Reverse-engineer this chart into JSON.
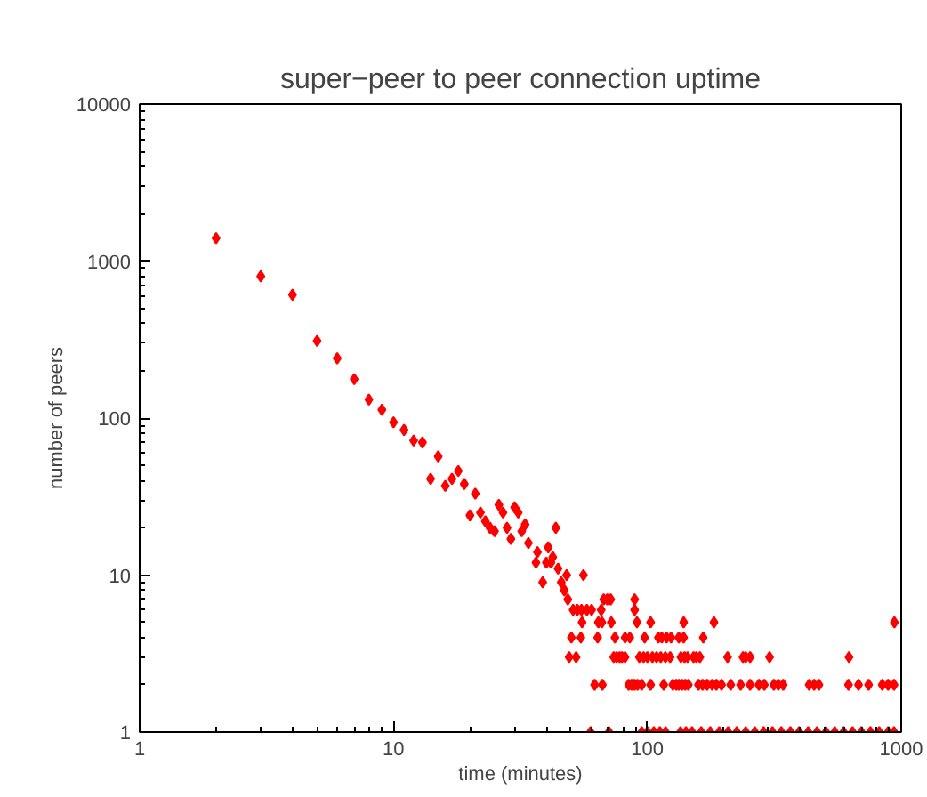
{
  "chart_data": {
    "type": "scatter",
    "title": "super−peer to peer connection uptime",
    "xlabel": "time (minutes)",
    "ylabel": "number of peers",
    "log": "xy",
    "grid": false,
    "marker": "diamond",
    "xlim": [
      1,
      1000
    ],
    "ylim": [
      1,
      10000
    ],
    "xticks": [
      1,
      10,
      100,
      1000
    ],
    "yticks": [
      1,
      10,
      100,
      1000,
      10000
    ],
    "series": [
      {
        "color": "#ff0000",
        "x": [
          2,
          3,
          4,
          5,
          6,
          7,
          8,
          9,
          10,
          11,
          12,
          13,
          14,
          15,
          16,
          17,
          18,
          19,
          20,
          21,
          22,
          23,
          24,
          25,
          26,
          27,
          28,
          29,
          30,
          31,
          32,
          33,
          34,
          36.4,
          36.9,
          38.7,
          40,
          40.7,
          41.7,
          42.4,
          43.6,
          44.5,
          45.8,
          47.1,
          48.1,
          56,
          48.6,
          67.3,
          69.5,
          71.7,
          89.1,
          51,
          53,
          55,
          57.8,
          60.3,
          65.8,
          89.1,
          55.3,
          64.1,
          66.2,
          72.1,
          91,
          103,
          139,
          183,
          940,
          50.2,
          54.7,
          63.7,
          74.5,
          81.7,
          85.3,
          97.6,
          110.5,
          114,
          119,
          124,
          133,
          139,
          166,
          49.2,
          52.4,
          73.7,
          75.7,
          77.8,
          79.5,
          81.7,
          93,
          96.6,
          100,
          104.7,
          108.7,
          112.9,
          117.8,
          123,
          135.6,
          140.1,
          144,
          152,
          156,
          161,
          207,
          238,
          244,
          254,
          303,
          623,
          62,
          66.5,
          84.4,
          86.7,
          89.1,
          91.5,
          95,
          103,
          116,
          126,
          130,
          133,
          137,
          141,
          145,
          159,
          165,
          172,
          180,
          187,
          196,
          213,
          233,
          254,
          275,
          289,
          315,
          328,
          343,
          434,
          454,
          474,
          620,
          679,
          744,
          842,
          888,
          937,
          59.7,
          70.6,
          95,
          100,
          106,
          112,
          118,
          135,
          142,
          150,
          163,
          177,
          192,
          208,
          225,
          244,
          265,
          287,
          311,
          337,
          366,
          396,
          430,
          466,
          505,
          547,
          593,
          643,
          697,
          756,
          819,
          888,
          937
        ],
        "values": [
          1400,
          800,
          610,
          310,
          240,
          177,
          131,
          113,
          94,
          84,
          72,
          70,
          41,
          57,
          37,
          41,
          46,
          38,
          24,
          33,
          25,
          22,
          20,
          19,
          28,
          25,
          20,
          17,
          27,
          25,
          19,
          21,
          16,
          12,
          14,
          9,
          12,
          15,
          12,
          13,
          20,
          11,
          9,
          8,
          10,
          10,
          7,
          7,
          7,
          7,
          7,
          6,
          6,
          6,
          6,
          6,
          6,
          6,
          5,
          5,
          5,
          5,
          5,
          5,
          5,
          5,
          5,
          4,
          4,
          4,
          4,
          4,
          4,
          4,
          4,
          4,
          4,
          4,
          4,
          4,
          4,
          3,
          3,
          3,
          3,
          3,
          3,
          3,
          3,
          3,
          3,
          3,
          3,
          3,
          3,
          3,
          3,
          3,
          3,
          3,
          3,
          3,
          3,
          3,
          3,
          3,
          3,
          3,
          2,
          2,
          2,
          2,
          2,
          2,
          2,
          2,
          2,
          2,
          2,
          2,
          2,
          2,
          2,
          2,
          2,
          2,
          2,
          2,
          2,
          2,
          2,
          2,
          2,
          2,
          2,
          2,
          2,
          2,
          2,
          2,
          2,
          2,
          2,
          2,
          2,
          2,
          1,
          1,
          1,
          1,
          1,
          1,
          1,
          1,
          1,
          1,
          1,
          1,
          1,
          1,
          1,
          1,
          1,
          1,
          1,
          1,
          1,
          1,
          1,
          1,
          1,
          1,
          1,
          1,
          1,
          1,
          1,
          1,
          1
        ]
      }
    ]
  }
}
